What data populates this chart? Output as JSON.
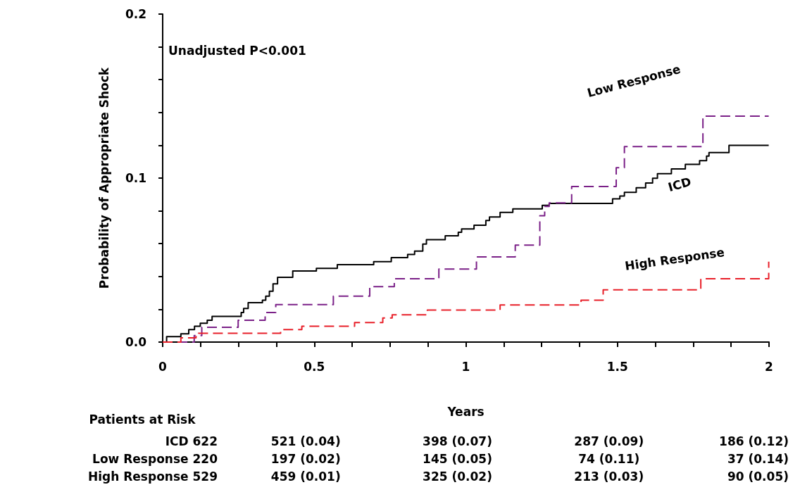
{
  "chart_data": {
    "type": "step",
    "xlabel": "Years",
    "ylabel": "Probability of Appropriate Shock",
    "xlim": [
      0,
      2
    ],
    "xticks": [
      0,
      {
        "value": 0.125,
        "label": null
      },
      {
        "value": 0.25,
        "label": null
      },
      {
        "value": 0.375,
        "label": null
      },
      0.5,
      {
        "value": 0.625,
        "label": null
      },
      {
        "value": 0.75,
        "label": null
      },
      {
        "value": 0.875,
        "label": null
      },
      1,
      {
        "value": 1.125,
        "label": null
      },
      {
        "value": 1.25,
        "label": null
      },
      {
        "value": 1.375,
        "label": null
      },
      1.5,
      {
        "value": 1.625,
        "label": null
      },
      {
        "value": 1.75,
        "label": null
      },
      {
        "value": 1.875,
        "label": null
      },
      2
    ],
    "ylim": [
      0,
      0.2
    ],
    "yticks": [
      {
        "value": 0,
        "label": "0.0"
      },
      {
        "value": 0.02,
        "label": null
      },
      {
        "value": 0.04,
        "label": null
      },
      {
        "value": 0.06,
        "label": null
      },
      {
        "value": 0.08,
        "label": null
      },
      {
        "value": 0.1,
        "label": "0.1"
      },
      {
        "value": 0.12,
        "label": null
      },
      {
        "value": 0.14,
        "label": null
      },
      {
        "value": 0.16,
        "label": null
      },
      {
        "value": 0.18,
        "label": null
      },
      {
        "value": 0.2,
        "label": "0.2"
      }
    ],
    "grid": false,
    "legend": false,
    "marker": "none",
    "series": [
      {
        "name": "ICD",
        "color": "#000000",
        "line_style": "solid",
        "x": [
          0,
          0.013,
          0.06,
          0.086,
          0.105,
          0.124,
          0.147,
          0.163,
          0.259,
          0.267,
          0.282,
          0.329,
          0.34,
          0.352,
          0.364,
          0.379,
          0.429,
          0.507,
          0.576,
          0.696,
          0.754,
          0.808,
          0.831,
          0.858,
          0.87,
          0.932,
          0.975,
          0.986,
          1.027,
          1.066,
          1.078,
          1.113,
          1.155,
          1.252,
          1.275,
          1.484,
          1.508,
          1.523,
          1.562,
          1.593,
          1.616,
          1.632,
          1.678,
          1.724,
          1.771,
          1.794,
          1.802,
          1.868,
          1.999
        ],
        "values": [
          0,
          0.0033,
          0.005,
          0.0076,
          0.0097,
          0.0115,
          0.0133,
          0.0157,
          0.018,
          0.0205,
          0.024,
          0.0255,
          0.028,
          0.031,
          0.0355,
          0.0395,
          0.0433,
          0.045,
          0.0472,
          0.049,
          0.0515,
          0.0534,
          0.0555,
          0.0598,
          0.0624,
          0.0648,
          0.067,
          0.069,
          0.0712,
          0.0741,
          0.0763,
          0.0791,
          0.0812,
          0.0834,
          0.0845,
          0.0873,
          0.0891,
          0.0913,
          0.0941,
          0.097,
          0.0999,
          0.1027,
          0.1056,
          0.1084,
          0.1106,
          0.1134,
          0.1156,
          0.12,
          0.12
        ]
      },
      {
        "name": "Low Response",
        "color": "#7b2188",
        "line_style": "dashed",
        "x": [
          0,
          0.104,
          0.129,
          0.249,
          0.338,
          0.373,
          0.563,
          0.683,
          0.764,
          0.911,
          1.035,
          1.163,
          1.244,
          1.26,
          1.275,
          1.349,
          1.496,
          1.523,
          1.782,
          1.999
        ],
        "values": [
          0,
          0.004,
          0.009,
          0.0133,
          0.018,
          0.0229,
          0.028,
          0.0338,
          0.0386,
          0.0445,
          0.0519,
          0.0591,
          0.077,
          0.0827,
          0.0849,
          0.0948,
          0.1063,
          0.1192,
          0.1378,
          0.1378
        ]
      },
      {
        "name": "High Response",
        "color": "#e8202a",
        "line_style": "dashed",
        "x": [
          0,
          0.06,
          0.11,
          0.118,
          0.389,
          0.459,
          0.633,
          0.726,
          0.757,
          0.873,
          1.113,
          1.38,
          1.453,
          1.775,
          1.999
        ],
        "values": [
          0,
          0.0026,
          0.004,
          0.0054,
          0.0076,
          0.0097,
          0.0119,
          0.0147,
          0.0166,
          0.0195,
          0.0226,
          0.0255,
          0.0319,
          0.0386,
          0.049
        ]
      }
    ],
    "annotations": [
      "Unadjusted P<0.001",
      "Patients at Risk",
      "ICD 622",
      "521 (0.04)",
      "398 (0.07)",
      "287 (0.09)",
      "186 (0.12)",
      "Low Response 220",
      "197 (0.02)",
      "145 (0.05)",
      "74 (0.11)",
      "37 (0.14)",
      "High Response 529",
      "459 (0.01)",
      "325 (0.02)",
      "213 (0.03)",
      "90 (0.05)"
    ]
  }
}
